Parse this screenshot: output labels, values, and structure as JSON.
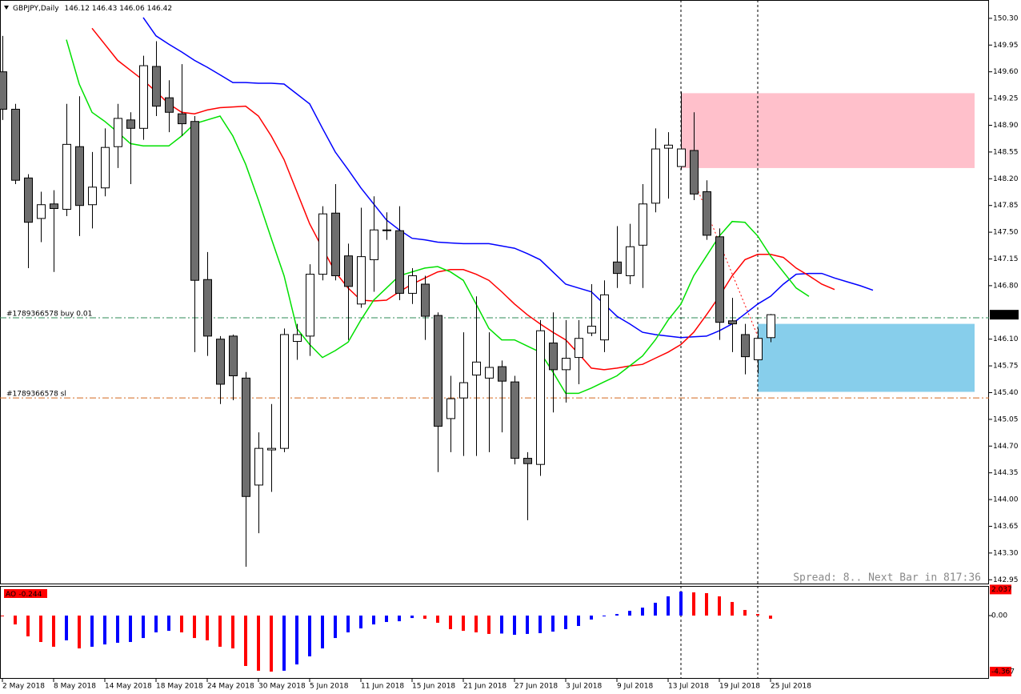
{
  "chart_data": {
    "type": "candlestick",
    "symbol": "GBPJPY,Daily",
    "categories": [
      "2 May 2018",
      null,
      null,
      null,
      "8 May 2018",
      null,
      null,
      null,
      "14 May 2018",
      null,
      null,
      null,
      "18 May 2018",
      null,
      null,
      null,
      "24 May 2018",
      null,
      null,
      null,
      "30 May 2018",
      null,
      null,
      null,
      "5 Jun 2018",
      null,
      null,
      null,
      "11 Jun 2018",
      null,
      null,
      null,
      "15 Jun 2018",
      null,
      null,
      null,
      "21 Jun 2018",
      null,
      null,
      null,
      "27 Jun 2018",
      null,
      null,
      null,
      "3 Jul 2018",
      null,
      null,
      null,
      "9 Jul 2018",
      null,
      null,
      null,
      "13 Jul 2018",
      null,
      null,
      null,
      "19 Jul 2018",
      null,
      null,
      null,
      "25 Jul 2018",
      null,
      null,
      null,
      null,
      null,
      null,
      null,
      null
    ],
    "open": [
      149.6,
      149.11,
      148.21,
      147.68,
      147.87,
      147.8,
      148.62,
      147.86,
      148.08,
      148.62,
      148.97,
      148.86,
      149.67,
      149.26,
      149.05,
      148.95,
      146.88,
      146.1,
      146.14,
      145.59,
      144.19,
      144.65,
      144.67,
      146.07,
      146.14,
      146.95,
      147.75,
      147.19,
      146.56,
      147.14,
      147.52,
      147.52,
      146.7,
      146.82,
      146.41,
      145.06,
      145.33,
      145.63,
      145.59,
      145.74,
      145.54,
      144.54,
      144.46,
      146.05,
      145.7,
      145.86,
      146.18,
      146.09,
      147.11,
      146.93,
      147.33,
      147.88,
      148.6,
      148.36,
      148.57,
      148.03,
      147.44,
      146.34,
      146.16,
      145.83,
      146.12,
      null,
      null,
      null,
      null,
      null,
      null,
      null,
      null
    ],
    "high": [
      150.07,
      149.18,
      148.26,
      148.03,
      148.05,
      149.18,
      149.28,
      148.55,
      148.86,
      149.18,
      149.07,
      149.81,
      150.0,
      149.49,
      149.7,
      149.02,
      147.24,
      146.14,
      146.16,
      145.67,
      144.88,
      145.25,
      146.24,
      146.3,
      147.08,
      147.84,
      148.13,
      147.35,
      147.82,
      147.97,
      147.76,
      147.84,
      147.03,
      146.93,
      146.45,
      145.62,
      146.19,
      146.66,
      146.19,
      145.82,
      145.62,
      144.62,
      146.35,
      146.45,
      146.35,
      146.35,
      146.82,
      146.87,
      147.58,
      147.61,
      148.13,
      148.86,
      148.81,
      149.34,
      149.07,
      148.18,
      147.55,
      146.64,
      146.3,
      146.24,
      146.43,
      null,
      null,
      null,
      null,
      null,
      null,
      null,
      null
    ],
    "low": [
      148.97,
      148.13,
      147.03,
      147.37,
      146.98,
      147.71,
      147.45,
      147.55,
      147.97,
      148.34,
      148.13,
      148.71,
      149.02,
      148.81,
      148.76,
      145.93,
      145.88,
      145.25,
      145.3,
      143.12,
      143.56,
      144.1,
      144.62,
      145.83,
      145.88,
      146.87,
      146.87,
      146.09,
      146.51,
      146.72,
      147.4,
      146.61,
      146.56,
      146.09,
      144.36,
      144.62,
      144.57,
      144.57,
      144.62,
      144.88,
      144.46,
      143.73,
      144.31,
      145.14,
      145.27,
      145.51,
      146.14,
      145.93,
      146.77,
      146.82,
      146.77,
      147.76,
      147.94,
      148.32,
      147.92,
      147.4,
      146.09,
      145.93,
      145.64,
      145.65,
      146.06,
      null,
      null,
      null,
      null,
      null,
      null,
      null,
      null
    ],
    "close": [
      149.11,
      148.18,
      147.63,
      147.86,
      147.81,
      148.65,
      147.85,
      148.09,
      148.61,
      148.99,
      148.86,
      149.68,
      149.15,
      149.07,
      148.92,
      146.87,
      146.14,
      145.51,
      145.62,
      144.04,
      144.67,
      144.67,
      146.16,
      146.16,
      146.95,
      147.74,
      146.93,
      146.79,
      147.18,
      147.53,
      147.53,
      146.7,
      146.93,
      146.4,
      144.96,
      145.32,
      145.53,
      145.8,
      145.73,
      145.55,
      144.54,
      144.47,
      146.21,
      145.7,
      145.85,
      146.11,
      146.27,
      146.68,
      146.96,
      147.31,
      147.87,
      148.59,
      148.64,
      148.59,
      148.0,
      147.46,
      146.32,
      146.3,
      145.87,
      146.11,
      146.42,
      null,
      null,
      null,
      null,
      null,
      null,
      null,
      null
    ],
    "up_color": "#ffffff",
    "down_color": "#6e6e6e",
    "ylim": [
      142.89,
      150.54
    ],
    "yticks": [
      {
        "value": 150.3,
        "label": "150.30"
      },
      149.95,
      {
        "value": 149.6,
        "label": "149.60"
      },
      149.25,
      {
        "value": 148.9,
        "label": "148.90"
      },
      148.55,
      {
        "value": 148.2,
        "label": "148.20"
      },
      147.85,
      {
        "value": 147.5,
        "label": "147.50"
      },
      147.15,
      {
        "value": 146.8,
        "label": "146.80"
      },
      {
        "value": 146.1,
        "label": "146.10"
      },
      145.75,
      {
        "value": 145.4,
        "label": "145.40"
      },
      145.05,
      {
        "value": 144.7,
        "label": "144.70"
      },
      144.35,
      {
        "value": 144.0,
        "label": "144.00"
      },
      143.65,
      {
        "value": 143.3,
        "label": "143.30"
      },
      142.95
    ],
    "moving_averages": [
      {
        "color": "#0000ff",
        "values": [
          null,
          null,
          null,
          null,
          null,
          null,
          null,
          null,
          null,
          null,
          null,
          150.31,
          150.07,
          149.96,
          149.86,
          149.75,
          149.66,
          149.56,
          149.46,
          149.46,
          149.45,
          149.45,
          149.44,
          149.31,
          149.18,
          148.86,
          148.55,
          148.32,
          148.08,
          147.87,
          147.66,
          147.53,
          147.42,
          147.4,
          147.37,
          147.36,
          147.35,
          147.35,
          147.35,
          147.32,
          147.29,
          147.22,
          147.14,
          146.98,
          146.82,
          146.77,
          146.72,
          146.56,
          146.4,
          146.3,
          146.19,
          146.16,
          146.14,
          146.12,
          146.13,
          146.14,
          146.21,
          146.3,
          146.43,
          146.56,
          146.66,
          146.82,
          146.95,
          146.96,
          146.96,
          146.9,
          146.85,
          146.8,
          146.74
        ]
      },
      {
        "color": "#ff0000",
        "values": [
          null,
          null,
          null,
          null,
          null,
          null,
          null,
          150.17,
          149.96,
          149.75,
          149.62,
          149.49,
          149.34,
          149.18,
          149.07,
          149.05,
          149.1,
          149.13,
          149.14,
          149.15,
          149.02,
          148.76,
          148.45,
          148.03,
          147.61,
          147.29,
          146.98,
          146.77,
          146.61,
          146.6,
          146.61,
          146.72,
          146.82,
          146.9,
          146.98,
          147.01,
          147.01,
          146.95,
          146.87,
          146.72,
          146.56,
          146.42,
          146.3,
          146.19,
          146.09,
          145.91,
          145.72,
          145.7,
          145.72,
          145.75,
          145.77,
          145.85,
          145.93,
          146.03,
          146.19,
          146.42,
          146.66,
          146.93,
          147.14,
          147.21,
          147.21,
          147.17,
          147.03,
          146.93,
          146.82,
          146.75,
          null,
          null,
          null
        ]
      },
      {
        "color": "#00e000",
        "values": [
          null,
          null,
          null,
          null,
          null,
          150.02,
          149.44,
          149.07,
          148.95,
          148.81,
          148.66,
          148.63,
          148.63,
          148.63,
          148.76,
          148.92,
          148.97,
          149.02,
          148.76,
          148.39,
          147.92,
          147.42,
          146.93,
          146.24,
          146.03,
          145.86,
          145.95,
          146.06,
          146.35,
          146.61,
          146.77,
          146.93,
          146.98,
          147.03,
          147.05,
          146.98,
          146.87,
          146.56,
          146.24,
          146.09,
          146.09,
          146.01,
          145.93,
          145.67,
          145.39,
          145.39,
          145.46,
          145.54,
          145.62,
          145.75,
          145.88,
          146.09,
          146.35,
          146.56,
          146.93,
          147.19,
          147.45,
          147.64,
          147.63,
          147.45,
          147.19,
          146.98,
          146.77,
          146.66,
          null,
          null,
          null,
          null,
          null
        ]
      }
    ],
    "zones": [
      {
        "top": 149.32,
        "bottom": 148.34,
        "color": "#ffc0cb"
      },
      {
        "top": 146.3,
        "bottom": 145.41,
        "color": "#87ceeb"
      }
    ],
    "orders": [
      {
        "label": "#1789366578 buy 0.01",
        "price": 146.38,
        "color": "#2e8b57"
      },
      {
        "label": "#1789366578 sl",
        "price": 145.33,
        "color": "#d2691e"
      }
    ],
    "status": "Spread: 8.. Next Bar in 817:36",
    "oscillator": {
      "type": "bar",
      "name": "AO",
      "values": [
        -0.06,
        -0.69,
        -1.62,
        -2.06,
        -2.43,
        -1.93,
        -2.56,
        -2.43,
        -2.25,
        -2.12,
        -2.06,
        -1.75,
        -1.31,
        -1.19,
        -1.31,
        -1.75,
        -1.93,
        -2.43,
        -2.56,
        -3.93,
        -4.3,
        -4.37,
        -4.3,
        -3.81,
        -3.18,
        -2.56,
        -1.75,
        -1.31,
        -1.0,
        -0.69,
        -0.5,
        -0.44,
        -0.19,
        -0.25,
        -0.56,
        -1.06,
        -1.19,
        -1.31,
        -1.43,
        -1.4,
        -1.5,
        -1.43,
        -1.37,
        -1.25,
        -1.06,
        -0.81,
        -0.31,
        -0.06,
        0.12,
        0.37,
        0.62,
        1.0,
        1.5,
        1.87,
        1.81,
        1.75,
        1.5,
        1.06,
        0.44,
        0.12,
        -0.244,
        null,
        null,
        null,
        null,
        null,
        null,
        null,
        null
      ],
      "colors": [
        "#ff0000",
        "#ff0000",
        "#ff0000",
        "#ff0000",
        "#ff0000",
        "#0000ff",
        "#ff0000",
        "#0000ff",
        "#0000ff",
        "#0000ff",
        "#0000ff",
        "#0000ff",
        "#0000ff",
        "#0000ff",
        "#ff0000",
        "#ff0000",
        "#ff0000",
        "#ff0000",
        "#ff0000",
        "#ff0000",
        "#ff0000",
        "#ff0000",
        "#0000ff",
        "#0000ff",
        "#0000ff",
        "#0000ff",
        "#0000ff",
        "#0000ff",
        "#0000ff",
        "#0000ff",
        "#0000ff",
        "#0000ff",
        "#0000ff",
        "#ff0000",
        "#ff0000",
        "#ff0000",
        "#ff0000",
        "#ff0000",
        "#ff0000",
        "#0000ff",
        "#0000ff",
        "#0000ff",
        "#0000ff",
        "#0000ff",
        "#0000ff",
        "#0000ff",
        "#0000ff",
        "#0000ff",
        "#0000ff",
        "#0000ff",
        "#0000ff",
        "#0000ff",
        "#0000ff",
        "#0000ff",
        "#ff0000",
        "#ff0000",
        "#ff0000",
        "#ff0000",
        "#ff0000",
        "#ff0000",
        "#ff0000",
        null,
        null,
        null,
        null,
        null,
        null,
        null,
        null
      ],
      "ylim": [
        -4.93,
        2.25
      ],
      "yticks": [
        2.037,
        {
          "value": 0,
          "label": "0.00"
        },
        -4.367
      ]
    }
  }
}
